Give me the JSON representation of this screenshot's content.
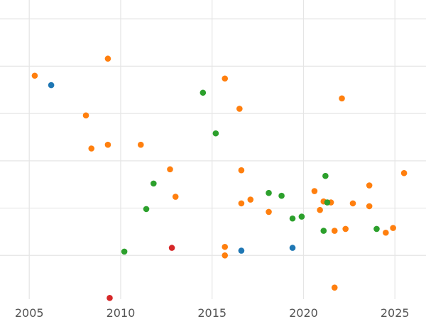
{
  "chart_data": {
    "type": "scatter",
    "title": "",
    "xlabel": "",
    "ylabel": "",
    "xlim": [
      2003.4,
      2026.7
    ],
    "ylim": [
      0,
      32
    ],
    "x_ticks": [
      2005,
      2010,
      2015,
      2020,
      2025
    ],
    "x_tick_labels": [
      "2005",
      "2010",
      "2015",
      "2020",
      "2025"
    ],
    "y_gridlines": [
      5,
      10,
      15,
      20,
      25,
      30
    ],
    "grid": true,
    "legend": "none",
    "colors": {
      "blue": "#1f77b4",
      "orange": "#ff7f0e",
      "green": "#2ca02c",
      "red": "#d62728",
      "grid": "#e5e5e5",
      "tick_text": "#555555"
    },
    "series": [
      {
        "color": "#1f77b4",
        "points": [
          [
            2006.2,
            23.0
          ],
          [
            2016.6,
            5.5
          ],
          [
            2019.4,
            5.8
          ]
        ]
      },
      {
        "color": "#ff7f0e",
        "points": [
          [
            2005.3,
            24.0
          ],
          [
            2009.3,
            25.8
          ],
          [
            2008.1,
            19.8
          ],
          [
            2008.4,
            16.3
          ],
          [
            2009.3,
            16.7
          ],
          [
            2011.1,
            16.7
          ],
          [
            2012.7,
            14.1
          ],
          [
            2013.0,
            11.2
          ],
          [
            2015.7,
            23.7
          ],
          [
            2016.5,
            20.5
          ],
          [
            2016.6,
            14.0
          ],
          [
            2017.1,
            10.9
          ],
          [
            2016.6,
            10.5
          ],
          [
            2018.1,
            9.6
          ],
          [
            2015.7,
            5.9
          ],
          [
            2015.7,
            5.0
          ],
          [
            2020.6,
            11.8
          ],
          [
            2020.9,
            9.8
          ],
          [
            2021.1,
            10.7
          ],
          [
            2021.5,
            10.6
          ],
          [
            2022.1,
            21.6
          ],
          [
            2022.7,
            10.5
          ],
          [
            2021.7,
            7.6
          ],
          [
            2022.3,
            7.8
          ],
          [
            2021.7,
            1.6
          ],
          [
            2023.6,
            12.4
          ],
          [
            2023.6,
            10.2
          ],
          [
            2024.5,
            7.4
          ],
          [
            2024.9,
            7.9
          ],
          [
            2025.5,
            13.7
          ]
        ]
      },
      {
        "color": "#2ca02c",
        "points": [
          [
            2010.2,
            5.4
          ],
          [
            2011.4,
            9.9
          ],
          [
            2011.8,
            12.6
          ],
          [
            2014.5,
            22.2
          ],
          [
            2015.2,
            17.9
          ],
          [
            2018.1,
            11.6
          ],
          [
            2018.8,
            11.3
          ],
          [
            2019.4,
            8.9
          ],
          [
            2019.9,
            9.1
          ],
          [
            2021.2,
            13.4
          ],
          [
            2021.1,
            7.6
          ],
          [
            2021.3,
            10.6
          ],
          [
            2024.0,
            7.8
          ]
        ]
      },
      {
        "color": "#d62728",
        "points": [
          [
            2009.4,
            0.5
          ],
          [
            2012.8,
            5.8
          ]
        ]
      }
    ]
  }
}
